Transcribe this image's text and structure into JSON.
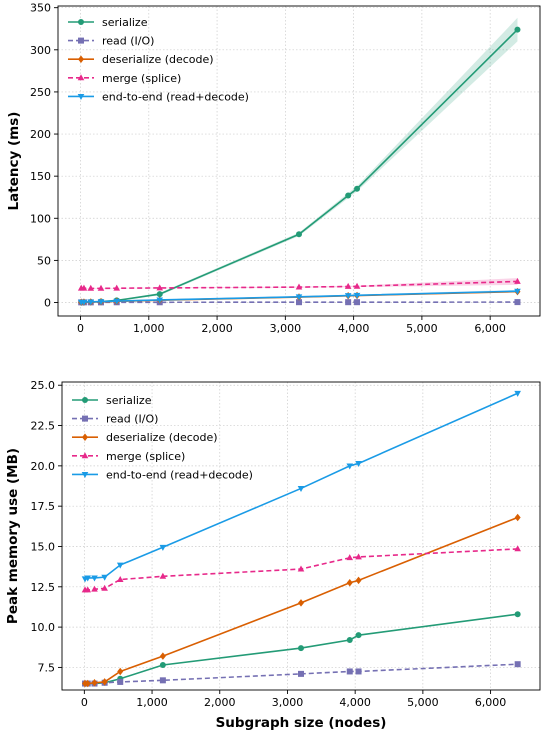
{
  "chart_data": [
    {
      "type": "line",
      "ylabel": "Latency (ms)",
      "xlabel": "",
      "xlim": [
        -330,
        6730
      ],
      "ylim": [
        -16,
        352
      ],
      "xticks": [
        0,
        1000,
        2000,
        3000,
        4000,
        5000,
        6000
      ],
      "xtick_labels": [
        "0",
        "1,000",
        "2,000",
        "3,000",
        "4,000",
        "5,000",
        "6,000"
      ],
      "yticks": [
        0,
        50,
        100,
        150,
        200,
        250,
        300,
        350
      ],
      "ytick_labels": [
        "0",
        "50",
        "100",
        "150",
        "200",
        "250",
        "300",
        "350"
      ],
      "grid": true,
      "legend": "top-left",
      "x": [
        10,
        50,
        150,
        300,
        530,
        1160,
        3200,
        3920,
        4050,
        6400
      ],
      "series": [
        {
          "name": "serialize",
          "color": "#239b76",
          "marker": "circle",
          "dash": "solid",
          "values": [
            0.1,
            0.3,
            0.6,
            1.2,
            2.5,
            10,
            81,
            127,
            135,
            324
          ],
          "band": [
            0,
            0,
            0,
            0.2,
            0.5,
            1.5,
            2,
            3,
            3,
            14
          ]
        },
        {
          "name": "read (I/O)",
          "color": "#7570b3",
          "marker": "square",
          "dash": "dashed",
          "values": [
            0.2,
            0.2,
            0.2,
            0.2,
            0.3,
            0.3,
            0.4,
            0.4,
            0.4,
            0.5
          ],
          "band": [
            0,
            0,
            0,
            0,
            0,
            0,
            0,
            0,
            0,
            0
          ]
        },
        {
          "name": "deserialize (decode)",
          "color": "#d95f02",
          "marker": "diamond",
          "dash": "solid",
          "values": [
            0.3,
            0.4,
            0.6,
            0.9,
            1.4,
            2.8,
            6.5,
            8,
            8.3,
            13
          ],
          "band": [
            0,
            0,
            0,
            0,
            0,
            0,
            0,
            0,
            0,
            0
          ]
        },
        {
          "name": "merge (splice)",
          "color": "#e7298a",
          "marker": "triangle-up",
          "dash": "dashed",
          "values": [
            17,
            17,
            16.8,
            16.8,
            17,
            17.3,
            18.3,
            19,
            19.2,
            25
          ],
          "band": [
            0.3,
            0.3,
            0.3,
            0.3,
            0.3,
            0.4,
            0.6,
            0.8,
            0.8,
            4
          ]
        },
        {
          "name": "end-to-end (read+decode)",
          "color": "#1a9be6",
          "marker": "triangle-down",
          "dash": "solid",
          "values": [
            0.4,
            0.5,
            0.8,
            1.1,
            1.7,
            3.1,
            6.8,
            8.3,
            8.6,
            13.5
          ],
          "band": [
            0,
            0,
            0,
            0,
            0,
            0.3,
            0.8,
            1,
            1,
            1.5
          ]
        }
      ]
    },
    {
      "type": "line",
      "ylabel": "Peak memory use (MB)",
      "xlabel": "Subgraph size (nodes)",
      "xlim": [
        -330,
        6730
      ],
      "ylim": [
        6.1,
        25.2
      ],
      "xticks": [
        0,
        1000,
        2000,
        3000,
        4000,
        5000,
        6000
      ],
      "xtick_labels": [
        "0",
        "1,000",
        "2,000",
        "3,000",
        "4,000",
        "5,000",
        "6,000"
      ],
      "yticks": [
        7.5,
        10,
        12.5,
        15,
        17.5,
        20,
        22.5,
        25
      ],
      "ytick_labels": [
        "7.5",
        "10.0",
        "12.5",
        "15.0",
        "17.5",
        "20.0",
        "22.5",
        "25.0"
      ],
      "grid": true,
      "legend": "top-left",
      "x": [
        10,
        50,
        150,
        300,
        530,
        1160,
        3200,
        3920,
        4050,
        6400
      ],
      "series": [
        {
          "name": "serialize",
          "color": "#239b76",
          "marker": "circle",
          "dash": "solid",
          "values": [
            6.5,
            6.5,
            6.5,
            6.55,
            6.8,
            7.65,
            8.7,
            9.2,
            9.5,
            10.8
          ]
        },
        {
          "name": "read (I/O)",
          "color": "#7570b3",
          "marker": "square",
          "dash": "dashed",
          "values": [
            6.5,
            6.5,
            6.5,
            6.55,
            6.6,
            6.7,
            7.1,
            7.25,
            7.25,
            7.7
          ]
        },
        {
          "name": "deserialize (decode)",
          "color": "#d95f02",
          "marker": "diamond",
          "dash": "solid",
          "values": [
            6.5,
            6.5,
            6.55,
            6.6,
            7.25,
            8.2,
            11.5,
            12.75,
            12.9,
            16.8
          ]
        },
        {
          "name": "merge (splice)",
          "color": "#e7298a",
          "marker": "triangle-up",
          "dash": "dashed",
          "values": [
            12.3,
            12.3,
            12.35,
            12.4,
            12.95,
            13.15,
            13.6,
            14.3,
            14.35,
            14.85
          ]
        },
        {
          "name": "end-to-end (read+decode)",
          "color": "#1a9be6",
          "marker": "triangle-down",
          "dash": "solid",
          "values": [
            13.0,
            13.05,
            13.05,
            13.1,
            13.85,
            14.95,
            18.6,
            20.0,
            20.15,
            24.5
          ]
        }
      ]
    }
  ]
}
